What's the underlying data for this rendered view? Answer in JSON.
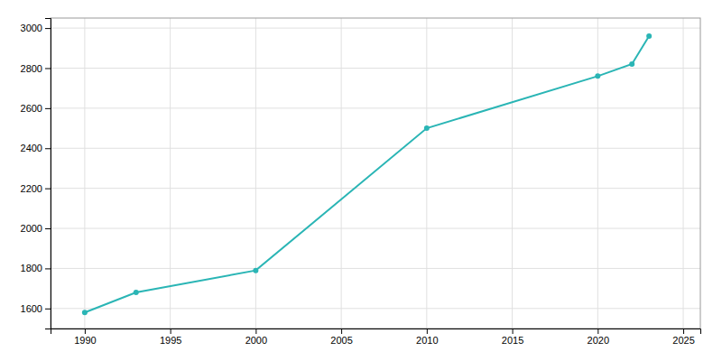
{
  "chart_data": {
    "type": "line",
    "x": [
      1990,
      1993,
      2000,
      2010,
      2020,
      2022,
      2023
    ],
    "values": [
      1580,
      1680,
      1790,
      2500,
      2760,
      2820,
      2960
    ],
    "color": "#2ab5b5",
    "marker": "circle",
    "xlim": [
      1988,
      2026
    ],
    "ylim": [
      1500,
      3050
    ],
    "xticks": [
      1990,
      1995,
      2000,
      2005,
      2010,
      2015,
      2020,
      2025
    ],
    "yticks": [
      1600,
      1800,
      2000,
      2200,
      2400,
      2600,
      2800,
      3000
    ],
    "grid": true
  }
}
